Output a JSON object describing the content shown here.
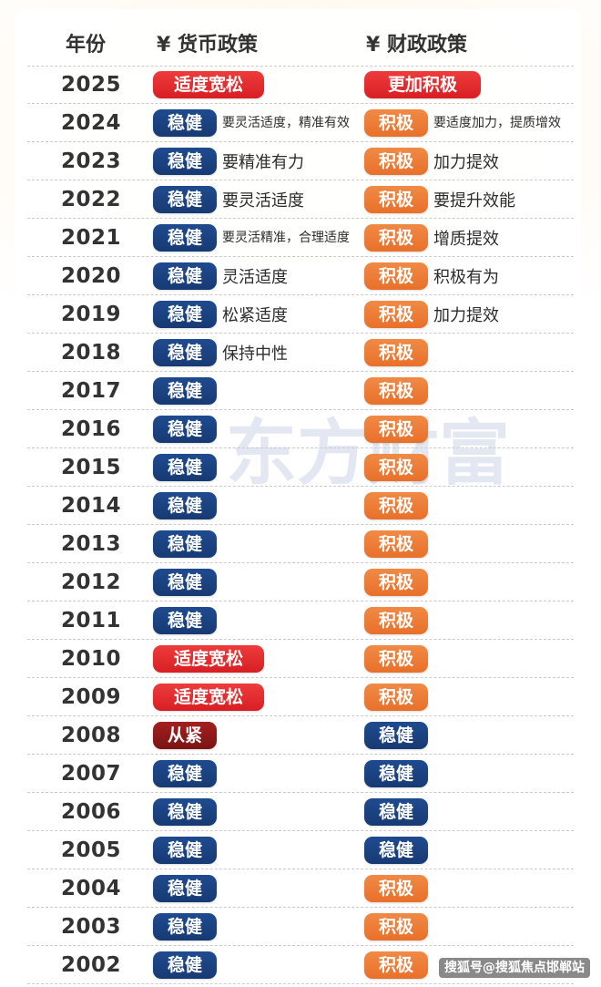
{
  "header": {
    "year_label": "年份",
    "monetary_label": "¥ 货币政策",
    "fiscal_label": "¥ 财政政策"
  },
  "colors": {
    "stable": "#1f4b8f",
    "active": "#f08a45",
    "loose": "#ee3b3b",
    "tight": "#a3201f"
  },
  "watermark": "东方财富",
  "footer": "搜狐号@搜狐焦点邯郸站",
  "rows": [
    {
      "year": "2025",
      "monetary": "适度宽松",
      "monetary_desc": "",
      "fiscal": "更加积极",
      "fiscal_desc": ""
    },
    {
      "year": "2024",
      "monetary": "稳健",
      "monetary_desc": "要灵活适度，精准有效",
      "fiscal": "积极",
      "fiscal_desc": "要适度加力，提质增效"
    },
    {
      "year": "2023",
      "monetary": "稳健",
      "monetary_desc": "要精准有力",
      "fiscal": "积极",
      "fiscal_desc": "加力提效"
    },
    {
      "year": "2022",
      "monetary": "稳健",
      "monetary_desc": "要灵活适度",
      "fiscal": "积极",
      "fiscal_desc": "要提升效能"
    },
    {
      "year": "2021",
      "monetary": "稳健",
      "monetary_desc": "要灵活精准，合理适度",
      "fiscal": "积极",
      "fiscal_desc": "增质提效"
    },
    {
      "year": "2020",
      "monetary": "稳健",
      "monetary_desc": "灵活适度",
      "fiscal": "积极",
      "fiscal_desc": "积极有为"
    },
    {
      "year": "2019",
      "monetary": "稳健",
      "monetary_desc": "松紧适度",
      "fiscal": "积极",
      "fiscal_desc": "加力提效"
    },
    {
      "year": "2018",
      "monetary": "稳健",
      "monetary_desc": "保持中性",
      "fiscal": "积极",
      "fiscal_desc": ""
    },
    {
      "year": "2017",
      "monetary": "稳健",
      "monetary_desc": "",
      "fiscal": "积极",
      "fiscal_desc": ""
    },
    {
      "year": "2016",
      "monetary": "稳健",
      "monetary_desc": "",
      "fiscal": "积极",
      "fiscal_desc": ""
    },
    {
      "year": "2015",
      "monetary": "稳健",
      "monetary_desc": "",
      "fiscal": "积极",
      "fiscal_desc": ""
    },
    {
      "year": "2014",
      "monetary": "稳健",
      "monetary_desc": "",
      "fiscal": "积极",
      "fiscal_desc": ""
    },
    {
      "year": "2013",
      "monetary": "稳健",
      "monetary_desc": "",
      "fiscal": "积极",
      "fiscal_desc": ""
    },
    {
      "year": "2012",
      "monetary": "稳健",
      "monetary_desc": "",
      "fiscal": "积极",
      "fiscal_desc": ""
    },
    {
      "year": "2011",
      "monetary": "稳健",
      "monetary_desc": "",
      "fiscal": "积极",
      "fiscal_desc": ""
    },
    {
      "year": "2010",
      "monetary": "适度宽松",
      "monetary_desc": "",
      "fiscal": "积极",
      "fiscal_desc": ""
    },
    {
      "year": "2009",
      "monetary": "适度宽松",
      "monetary_desc": "",
      "fiscal": "积极",
      "fiscal_desc": ""
    },
    {
      "year": "2008",
      "monetary": "从紧",
      "monetary_desc": "",
      "fiscal": "稳健",
      "fiscal_desc": ""
    },
    {
      "year": "2007",
      "monetary": "稳健",
      "monetary_desc": "",
      "fiscal": "稳健",
      "fiscal_desc": ""
    },
    {
      "year": "2006",
      "monetary": "稳健",
      "monetary_desc": "",
      "fiscal": "稳健",
      "fiscal_desc": ""
    },
    {
      "year": "2005",
      "monetary": "稳健",
      "monetary_desc": "",
      "fiscal": "稳健",
      "fiscal_desc": ""
    },
    {
      "year": "2004",
      "monetary": "稳健",
      "monetary_desc": "",
      "fiscal": "积极",
      "fiscal_desc": ""
    },
    {
      "year": "2003",
      "monetary": "稳健",
      "monetary_desc": "",
      "fiscal": "积极",
      "fiscal_desc": ""
    },
    {
      "year": "2002",
      "monetary": "稳健",
      "monetary_desc": "",
      "fiscal": "积极",
      "fiscal_desc": ""
    }
  ]
}
